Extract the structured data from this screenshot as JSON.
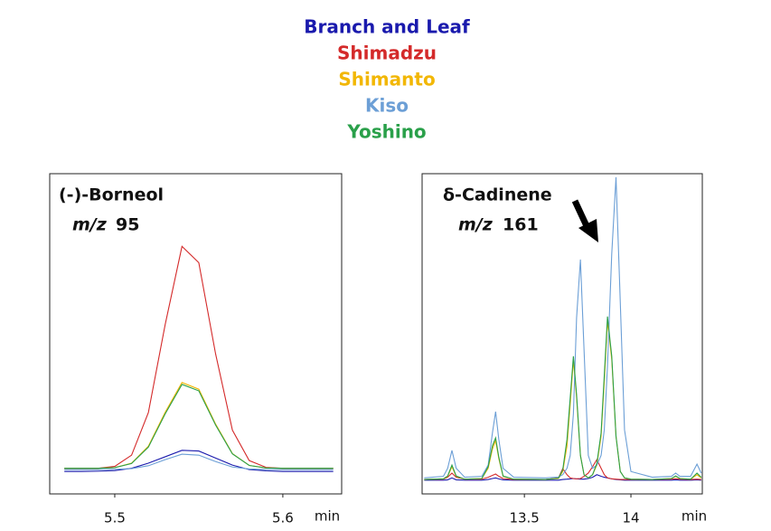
{
  "chart_data": [
    {
      "type": "line",
      "legend": "top",
      "title": "(-)-Borneol",
      "mz_label": "m/z",
      "ion_mz": 95,
      "x_unit": "min",
      "xlim": [
        5.4613,
        5.635
      ],
      "xticks": [
        5.5,
        5.6
      ],
      "ylim": [
        0,
        100
      ],
      "grid": false,
      "x": [
        5.47,
        5.48,
        5.49,
        5.5,
        5.51,
        5.52,
        5.53,
        5.54,
        5.55,
        5.56,
        5.57,
        5.58,
        5.59,
        5.6,
        5.61,
        5.62,
        5.63
      ],
      "series": [
        {
          "name": "Branch and Leaf",
          "color": "#1a1aad",
          "values": [
            7.0,
            7.0,
            7.1,
            7.3,
            8.0,
            9.6,
            11.6,
            13.6,
            13.4,
            11.2,
            9.0,
            7.6,
            7.2,
            7.0,
            7.0,
            7.0,
            7.0
          ]
        },
        {
          "name": "Shimadzu",
          "color": "#d42a2a",
          "values": [
            8,
            8,
            8,
            8.6,
            12.1,
            25.4,
            52.9,
            77.3,
            72.2,
            43.7,
            19.9,
            10.4,
            8.3,
            8,
            8,
            8,
            8
          ]
        },
        {
          "name": "Shimanto",
          "color": "#f2b705",
          "values": [
            8,
            8,
            8,
            8.2,
            9.6,
            14.9,
            25.5,
            34.8,
            32.7,
            21.8,
            12.6,
            8.9,
            8.1,
            8,
            8,
            8,
            8
          ]
        },
        {
          "name": "Kiso",
          "color": "#6c9fd6",
          "values": [
            7.6,
            7.6,
            7.6,
            7.7,
            7.9,
            8.8,
            10.7,
            12.4,
            12.1,
            10.1,
            8.4,
            7.8,
            7.6,
            7.6,
            7.6,
            7.6,
            7.6
          ]
        },
        {
          "name": "Yoshino",
          "color": "#2aa04a",
          "values": [
            8,
            8,
            8,
            8.2,
            9.5,
            14.6,
            25.0,
            34.2,
            32.2,
            21.5,
            12.5,
            8.9,
            8.1,
            8,
            8,
            8,
            8
          ]
        }
      ]
    },
    {
      "type": "line",
      "title": "δ-Cadinene",
      "mz_label": "m/z",
      "ion_mz": 161,
      "x_unit": "min",
      "xlim": [
        13.02,
        14.335
      ],
      "xticks": [
        13.5,
        14
      ],
      "ylim": [
        0,
        100
      ],
      "grid": false,
      "x": [
        13.03,
        13.12,
        13.14,
        13.16,
        13.18,
        13.22,
        13.3,
        13.33,
        13.35,
        13.365,
        13.38,
        13.4,
        13.45,
        13.6,
        13.66,
        13.68,
        13.7,
        13.715,
        13.73,
        13.745,
        13.763,
        13.78,
        13.8,
        13.82,
        13.84,
        13.86,
        13.875,
        13.89,
        13.91,
        13.93,
        13.95,
        13.97,
        14.0,
        14.1,
        14.19,
        14.21,
        14.23,
        14.28,
        14.31,
        14.33
      ],
      "series": [
        {
          "name": "Branch and Leaf",
          "color": "#1a1aad",
          "values": [
            4.3,
            4.3,
            4.4,
            5,
            4.4,
            4.3,
            4.3,
            4.5,
            4.8,
            5,
            4.7,
            4.4,
            4.3,
            4.3,
            4.3,
            4.5,
            4.6,
            4.7,
            4.8,
            4.7,
            4.6,
            4.6,
            4.8,
            5.2,
            6,
            5.5,
            5.2,
            5,
            4.7,
            4.5,
            4.4,
            4.3,
            4.3,
            4.3,
            4.3,
            4.4,
            4.3,
            4.3,
            4.4,
            4.3
          ]
        },
        {
          "name": "Shimadzu",
          "color": "#d42a2a",
          "values": [
            4.5,
            4.6,
            5.2,
            6.5,
            5.2,
            4.6,
            4.6,
            5.2,
            5.8,
            6.2,
            5.5,
            4.8,
            4.5,
            4.5,
            5,
            7.9,
            6,
            5,
            4.8,
            4.7,
            4.8,
            5.5,
            6.5,
            8.5,
            10.7,
            8,
            6,
            5,
            4.7,
            4.6,
            4.5,
            4.5,
            4.5,
            4.5,
            4.6,
            4.7,
            4.6,
            4.5,
            4.6,
            4.5
          ]
        },
        {
          "name": "Shimanto",
          "color": "#f2b705",
          "values": [
            4.5,
            4.7,
            5.5,
            8.5,
            5.5,
            4.6,
            4.8,
            8,
            14,
            16.7,
            11,
            5.5,
            4.6,
            4.5,
            4.8,
            7,
            15,
            28,
            41.8,
            30,
            12,
            6,
            5,
            6,
            9,
            18,
            35,
            54,
            42,
            18,
            7,
            5,
            4.6,
            4.5,
            4.8,
            5.5,
            4.8,
            4.6,
            6,
            5
          ]
        },
        {
          "name": "Kiso",
          "color": "#6c9fd6",
          "values": [
            5,
            5.5,
            8,
            13.6,
            8,
            5.2,
            5.5,
            9,
            19,
            25.7,
            17,
            8,
            5.2,
            5,
            5.3,
            6,
            8,
            12,
            25,
            55,
            73.2,
            45,
            12,
            8,
            9,
            12,
            20,
            40,
            75,
            98.9,
            60,
            20,
            7,
            5.2,
            5.5,
            6.5,
            5.5,
            5.5,
            9.3,
            6.5
          ]
        },
        {
          "name": "Yoshino",
          "color": "#2aa04a",
          "values": [
            4.5,
            4.7,
            5.6,
            9,
            5.6,
            4.6,
            4.8,
            8.5,
            15,
            17.5,
            11.5,
            5.6,
            4.6,
            4.5,
            4.9,
            7.5,
            17,
            30,
            43,
            31,
            12,
            6,
            5,
            6,
            9.5,
            19,
            37,
            55.4,
            43,
            18,
            7,
            5,
            4.6,
            4.5,
            4.8,
            5.6,
            4.8,
            4.6,
            6.5,
            5.2
          ]
        }
      ]
    }
  ]
}
